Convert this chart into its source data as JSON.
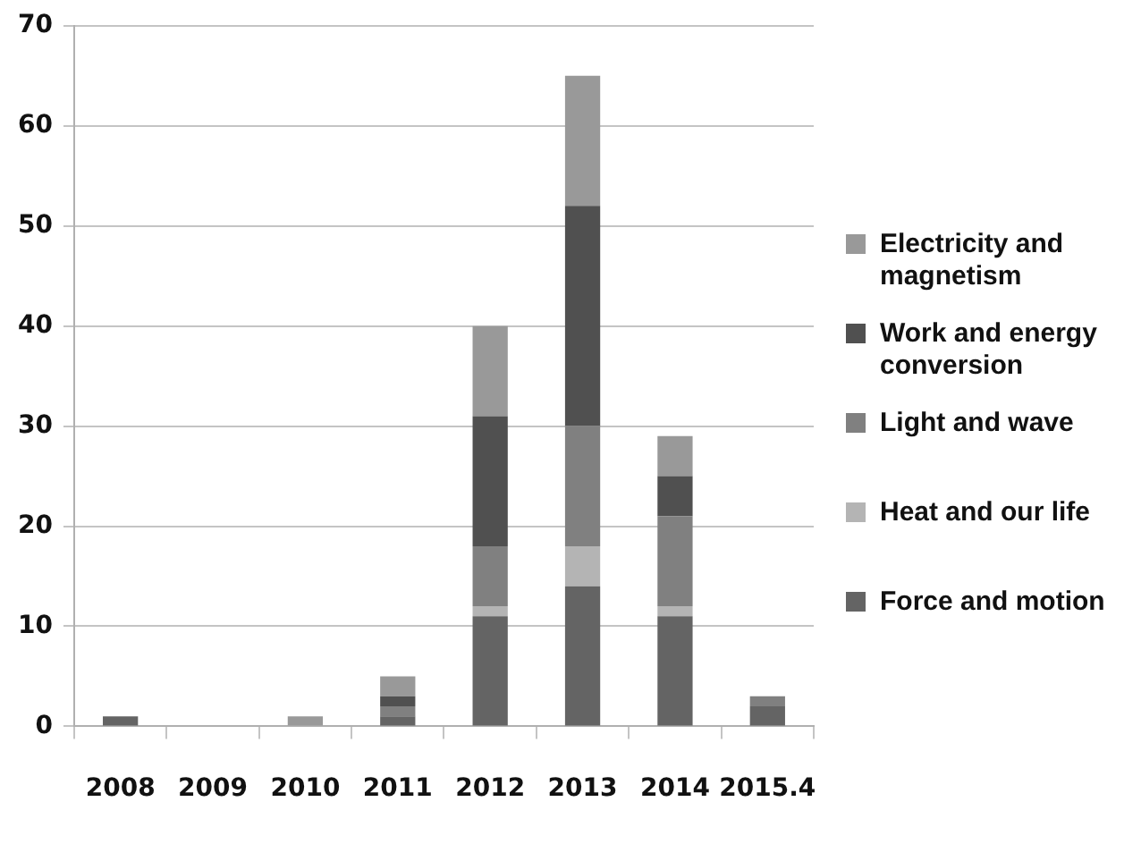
{
  "chart_data": {
    "type": "bar",
    "stacked": true,
    "categories": [
      "2008",
      "2009",
      "2010",
      "2011",
      "2012",
      "2013",
      "2014",
      "2015.4"
    ],
    "series": [
      {
        "name": "Force and motion",
        "color": "#646464",
        "values": [
          1,
          0,
          0,
          1,
          11,
          14,
          11,
          2
        ]
      },
      {
        "name": "Heat and our life",
        "color": "#b4b4b4",
        "values": [
          0,
          0,
          0,
          0,
          1,
          4,
          1,
          0
        ]
      },
      {
        "name": "Light and wave",
        "color": "#808080",
        "values": [
          0,
          0,
          0,
          1,
          6,
          12,
          9,
          1
        ]
      },
      {
        "name": "Work and energy conversion",
        "color": "#505050",
        "values": [
          0,
          0,
          0,
          1,
          13,
          22,
          4,
          0
        ]
      },
      {
        "name": "Electricity and magnetism",
        "color": "#999999",
        "values": [
          0,
          0,
          1,
          2,
          9,
          13,
          4,
          0
        ]
      }
    ],
    "ylim": [
      0,
      70
    ],
    "yticks": [
      0,
      10,
      20,
      30,
      40,
      50,
      60,
      70
    ],
    "grid": "y",
    "legend": "right"
  }
}
